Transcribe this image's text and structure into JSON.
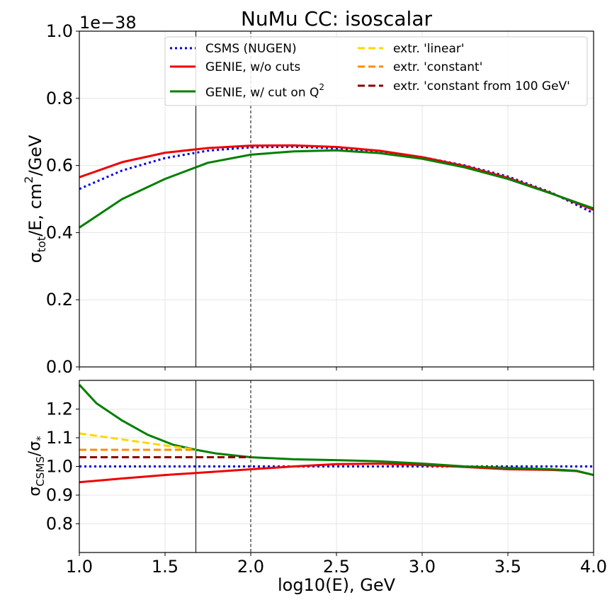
{
  "title": "NuMu CC: isoscalar",
  "chart_data": [
    {
      "type": "line",
      "panel": "top",
      "offset_text": "1e−38",
      "ylabel_main": "σ",
      "ylabel_sub": "tot",
      "ylabel_rest": "/E, cm",
      "ylabel_sup": "2",
      "ylabel_tail": "/GeV",
      "xlim": [
        1.0,
        4.0
      ],
      "ylim": [
        0.0,
        1.0
      ],
      "yticks": [
        0.0,
        0.2,
        0.4,
        0.6,
        0.8,
        1.0
      ],
      "ytick_labels": [
        "0.0",
        "0.2",
        "0.4",
        "0.6",
        "0.8",
        "1.0"
      ],
      "grid": true,
      "legend_position": "top-right",
      "series": [
        {
          "name": "CSMS (NUGEN)",
          "color": "#0000dd",
          "style": "dotted",
          "x": [
            1.0,
            1.25,
            1.5,
            1.75,
            2.0,
            2.25,
            2.5,
            2.75,
            3.0,
            3.25,
            3.5,
            3.75,
            4.0
          ],
          "y": [
            0.53,
            0.585,
            0.622,
            0.644,
            0.654,
            0.656,
            0.651,
            0.641,
            0.625,
            0.6,
            0.567,
            0.52,
            0.458
          ]
        },
        {
          "name": "GENIE, w/o cuts",
          "color": "#ee0000",
          "style": "solid",
          "x": [
            1.0,
            1.25,
            1.5,
            1.75,
            2.0,
            2.25,
            2.5,
            2.75,
            3.0,
            3.25,
            3.5,
            3.75,
            4.0
          ],
          "y": [
            0.565,
            0.61,
            0.638,
            0.652,
            0.659,
            0.66,
            0.655,
            0.644,
            0.625,
            0.598,
            0.563,
            0.518,
            0.468
          ]
        },
        {
          "name": "GENIE, w/ cut on Q",
          "name_sup": "2",
          "color": "#007f00",
          "style": "solid",
          "x": [
            1.0,
            1.25,
            1.5,
            1.75,
            2.0,
            2.25,
            2.5,
            2.75,
            3.0,
            3.25,
            3.5,
            3.75,
            4.0
          ],
          "y": [
            0.415,
            0.5,
            0.56,
            0.608,
            0.632,
            0.642,
            0.645,
            0.637,
            0.62,
            0.594,
            0.56,
            0.517,
            0.472
          ]
        },
        {
          "name": "extr. 'linear'",
          "color": "#ffd700",
          "style": "dashed",
          "x": [],
          "y": []
        },
        {
          "name": "extr. 'constant'",
          "color": "#ff8c00",
          "style": "dashed",
          "x": [],
          "y": []
        },
        {
          "name": "extr. 'constant from 100 GeV'",
          "color": "#8b0000",
          "style": "dashed",
          "x": [],
          "y": []
        }
      ],
      "vlines": [
        {
          "x": 1.68,
          "style": "solid"
        },
        {
          "x": 2.0,
          "style": "dashed"
        }
      ]
    },
    {
      "type": "line",
      "panel": "bottom",
      "ylabel_main": "σ",
      "ylabel_sub": "CSMS",
      "ylabel_rest": "/σ",
      "ylabel_sub2": "*",
      "xlabel": "log10(E), GeV",
      "xlim": [
        1.0,
        4.0
      ],
      "ylim": [
        0.7,
        1.3
      ],
      "yticks": [
        0.8,
        0.9,
        1.0,
        1.1,
        1.2
      ],
      "ytick_labels": [
        "0.8",
        "0.9",
        "1.0",
        "1.1",
        "1.2"
      ],
      "xticks": [
        1.0,
        1.5,
        2.0,
        2.5,
        3.0,
        3.5,
        4.0
      ],
      "xtick_labels": [
        "1.0",
        "1.5",
        "2.0",
        "2.5",
        "3.0",
        "3.5",
        "4.0"
      ],
      "grid": true,
      "series": [
        {
          "name": "CSMS (NUGEN)",
          "color": "#0000dd",
          "style": "dotted",
          "x": [
            1.0,
            4.0
          ],
          "y": [
            1.0,
            1.0
          ]
        },
        {
          "name": "GENIE, w/o cuts",
          "color": "#ee0000",
          "style": "solid",
          "x": [
            1.0,
            1.25,
            1.5,
            1.75,
            2.0,
            2.25,
            2.5,
            2.75,
            3.0,
            3.25,
            3.5,
            3.75,
            3.9,
            4.0
          ],
          "y": [
            0.945,
            0.958,
            0.97,
            0.98,
            0.99,
            1.0,
            1.008,
            1.01,
            1.005,
            0.998,
            0.99,
            0.988,
            0.984,
            0.97
          ]
        },
        {
          "name": "GENIE, w/ cut on Q²",
          "color": "#007f00",
          "style": "solid",
          "x": [
            1.0,
            1.1,
            1.25,
            1.4,
            1.55,
            1.68,
            1.8,
            2.0,
            2.25,
            2.5,
            2.75,
            3.0,
            3.25,
            3.5,
            3.75,
            3.9,
            4.0
          ],
          "y": [
            1.285,
            1.22,
            1.16,
            1.11,
            1.075,
            1.058,
            1.045,
            1.032,
            1.025,
            1.022,
            1.018,
            1.01,
            1.0,
            0.995,
            0.99,
            0.985,
            0.97
          ]
        },
        {
          "name": "extr. 'linear'",
          "color": "#ffd700",
          "style": "dashed",
          "x": [
            1.0,
            1.68
          ],
          "y": [
            1.115,
            1.058
          ]
        },
        {
          "name": "extr. 'constant'",
          "color": "#ff8c00",
          "style": "dashed",
          "x": [
            1.0,
            1.68
          ],
          "y": [
            1.058,
            1.058
          ]
        },
        {
          "name": "extr. 'constant from 100 GeV'",
          "color": "#8b0000",
          "style": "dashed",
          "x": [
            1.0,
            2.0
          ],
          "y": [
            1.032,
            1.032
          ]
        }
      ],
      "vlines": [
        {
          "x": 1.68,
          "style": "solid"
        },
        {
          "x": 2.0,
          "style": "dashed"
        }
      ]
    }
  ]
}
